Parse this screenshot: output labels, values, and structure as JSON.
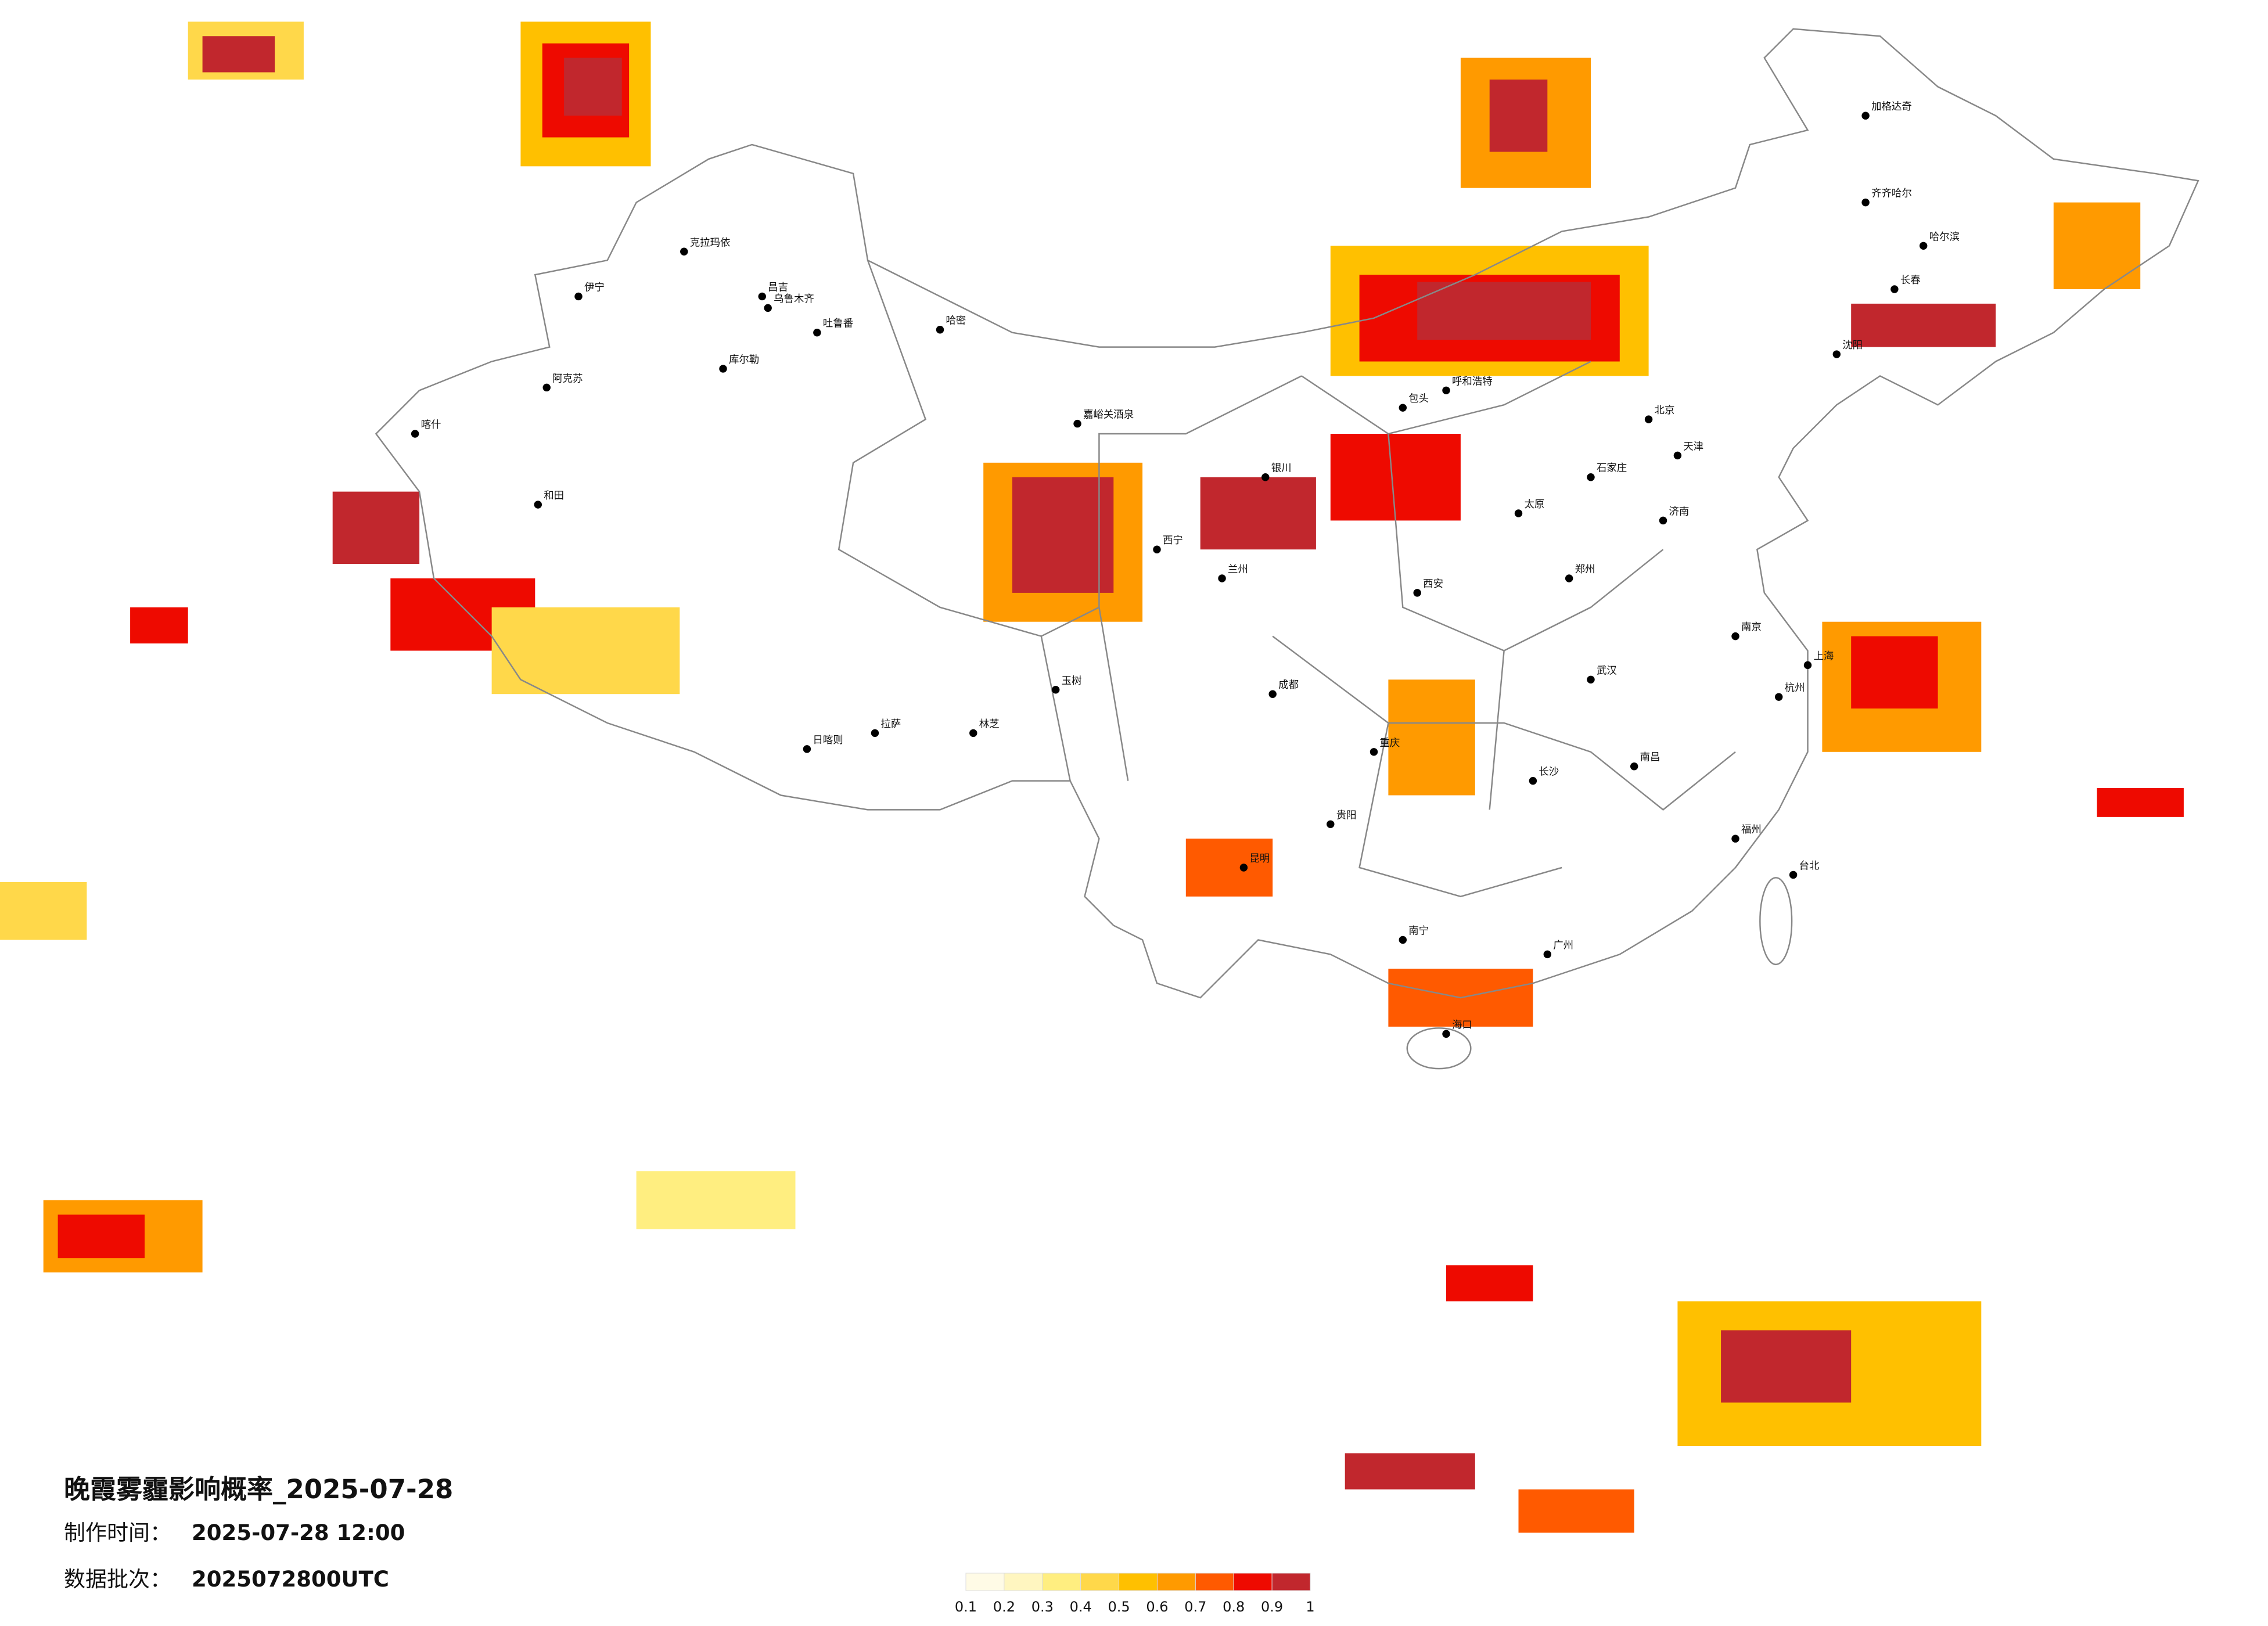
{
  "title": "晚霞雾霾影响概率_2025-07-28",
  "made_label": "制作时间：",
  "made_time": "2025-07-28 12:00",
  "batch_label": "数据批次：",
  "batch": "2025072800UTC",
  "colorbar": {
    "colors": [
      "#fffbe6",
      "#fff6c0",
      "#ffee80",
      "#ffd84a",
      "#ffc000",
      "#ff9a00",
      "#ff5a00",
      "#ee0a00",
      "#c1272d"
    ],
    "ticks": [
      0.1,
      0.2,
      0.3,
      0.4,
      0.5,
      0.6,
      0.7,
      0.8,
      0.9,
      1
    ]
  },
  "cities": [
    "克拉玛依",
    "伊宁",
    "昌吉",
    "乌鲁木齐",
    "吐鲁番",
    "库尔勒",
    "阿克苏",
    "喀什",
    "和田",
    "哈密",
    "嘉峪关酒泉",
    "拉萨",
    "日喀则",
    "林芝",
    "玉树",
    "西宁",
    "兰州",
    "银川",
    "呼和浩特",
    "包头",
    "北京",
    "天津",
    "石家庄",
    "太原",
    "济南",
    "郑州",
    "西安",
    "成都",
    "重庆",
    "武汉",
    "长沙",
    "南昌",
    "南京",
    "上海",
    "杭州",
    "福州",
    "广州",
    "南宁",
    "昆明",
    "贵阳",
    "海口",
    "台北",
    "哈尔滨",
    "长春",
    "沈阳",
    "齐齐哈尔",
    "加格达奇"
  ]
}
